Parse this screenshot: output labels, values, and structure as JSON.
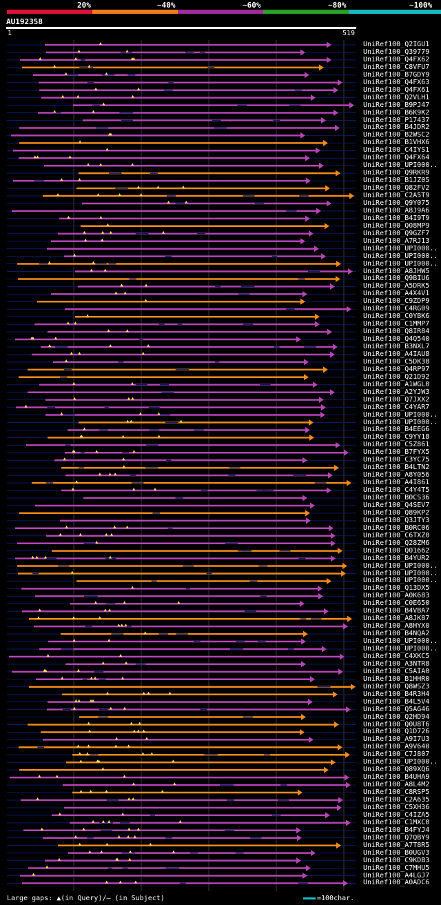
{
  "legend": {
    "labels": [
      "20%",
      "~40%",
      "~60%",
      "~80%",
      "~100%"
    ],
    "colors": [
      "#e0103a",
      "#f07c1c",
      "#a02c9c",
      "#28a028",
      "#18b8c0"
    ]
  },
  "query": {
    "title": "AU192358",
    "start_label": "1",
    "end_label": "519"
  },
  "colors": {
    "orange": "#f38a1e",
    "purple": "#b544b8",
    "navy": "#0a1a6a",
    "marker": "#ffe060",
    "grid": "#3a3a3a"
  },
  "rows": [
    {
      "name": "UniRef100_Q2IGU1",
      "c": "p"
    },
    {
      "name": "UniRef100_Q39779",
      "c": "p"
    },
    {
      "name": "UniRef100_Q4FX62",
      "c": "p"
    },
    {
      "name": "UniRef100_C8VFU7",
      "c": "o"
    },
    {
      "name": "UniRef100_B7GDY9",
      "c": "p"
    },
    {
      "name": "UniRef100_Q4FX63",
      "c": "p"
    },
    {
      "name": "UniRef100_Q4FX61",
      "c": "p"
    },
    {
      "name": "UniRef100_Q2VLH1",
      "c": "p"
    },
    {
      "name": "UniRef100_B9PJ47",
      "c": "p"
    },
    {
      "name": "UniRef100_B6K9K2",
      "c": "p"
    },
    {
      "name": "UniRef100_P17437",
      "c": "p"
    },
    {
      "name": "UniRef100_B4JDR2",
      "c": "p"
    },
    {
      "name": "UniRef100_B2WSC2",
      "c": "p"
    },
    {
      "name": "UniRef100_B1VHX6",
      "c": "o"
    },
    {
      "name": "UniRef100_C4IYS1",
      "c": "p"
    },
    {
      "name": "UniRef100_Q4FX64",
      "c": "p"
    },
    {
      "name": "UniRef100_UPI000..",
      "c": "p"
    },
    {
      "name": "UniRef100_Q9RKR9",
      "c": "o"
    },
    {
      "name": "UniRef100_B1JZ05",
      "c": "p"
    },
    {
      "name": "UniRef100_Q82FV2",
      "c": "o"
    },
    {
      "name": "UniRef100_C2A5T9",
      "c": "o"
    },
    {
      "name": "UniRef100_Q9Y075",
      "c": "p"
    },
    {
      "name": "UniRef100_A8J9A6",
      "c": "p"
    },
    {
      "name": "UniRef100_B4I9T9",
      "c": "p"
    },
    {
      "name": "UniRef100_Q08MP9",
      "c": "o"
    },
    {
      "name": "UniRef100_Q9GZF7",
      "c": "p"
    },
    {
      "name": "UniRef100_A7RJ13",
      "c": "p"
    },
    {
      "name": "UniRef100_UPI000..",
      "c": "p"
    },
    {
      "name": "UniRef100_UPI000..",
      "c": "p"
    },
    {
      "name": "UniRef100_UPI000..",
      "c": "o"
    },
    {
      "name": "UniRef100_A8JHW5",
      "c": "p"
    },
    {
      "name": "UniRef100_Q9BIU6",
      "c": "o"
    },
    {
      "name": "UniRef100_A5DRK5",
      "c": "p"
    },
    {
      "name": "UniRef100_A4X4V1",
      "c": "p"
    },
    {
      "name": "UniRef100_C9ZDP9",
      "c": "o"
    },
    {
      "name": "UniRef100_C4RG09",
      "c": "p"
    },
    {
      "name": "UniRef100_C0YBK6",
      "c": "o"
    },
    {
      "name": "UniRef100_C1MMP7",
      "c": "p"
    },
    {
      "name": "UniRef100_Q8IR84",
      "c": "p"
    },
    {
      "name": "UniRef100_Q4Q540",
      "c": "p"
    },
    {
      "name": "UniRef100_B3NXL7",
      "c": "p"
    },
    {
      "name": "UniRef100_A4IAU8",
      "c": "p"
    },
    {
      "name": "UniRef100_C5DK38",
      "c": "p"
    },
    {
      "name": "UniRef100_Q4RP97",
      "c": "o"
    },
    {
      "name": "UniRef100_Q21D92",
      "c": "o"
    },
    {
      "name": "UniRef100_A1WGL0",
      "c": "p"
    },
    {
      "name": "UniRef100_A2YJW3",
      "c": "p"
    },
    {
      "name": "UniRef100_Q7JXX2",
      "c": "p"
    },
    {
      "name": "UniRef100_C4YAR7",
      "c": "p"
    },
    {
      "name": "UniRef100_UPI000..",
      "c": "p"
    },
    {
      "name": "UniRef100_UPI000..",
      "c": "o"
    },
    {
      "name": "UniRef100_B4EEG6",
      "c": "p"
    },
    {
      "name": "UniRef100_C9YY18",
      "c": "o"
    },
    {
      "name": "UniRef100_C5Z861",
      "c": "p"
    },
    {
      "name": "UniRef100_B7FYX5",
      "c": "p"
    },
    {
      "name": "UniRef100_C3YC75",
      "c": "p"
    },
    {
      "name": "UniRef100_B4LTN2",
      "c": "o"
    },
    {
      "name": "UniRef100_A8Y056",
      "c": "p"
    },
    {
      "name": "UniRef100_A4I861",
      "c": "o"
    },
    {
      "name": "UniRef100_C4Y4T5",
      "c": "p"
    },
    {
      "name": "UniRef100_B0CS36",
      "c": "p"
    },
    {
      "name": "UniRef100_Q4SEV7",
      "c": "p"
    },
    {
      "name": "UniRef100_Q89KP2",
      "c": "o"
    },
    {
      "name": "UniRef100_Q3JTY3",
      "c": "p"
    },
    {
      "name": "UniRef100_B0RC06",
      "c": "p"
    },
    {
      "name": "UniRef100_C6TXZ0",
      "c": "p"
    },
    {
      "name": "UniRef100_Q28ZM6",
      "c": "p"
    },
    {
      "name": "UniRef100_Q01662",
      "c": "o"
    },
    {
      "name": "UniRef100_B4YUR2",
      "c": "p"
    },
    {
      "name": "UniRef100_UPI000..",
      "c": "o"
    },
    {
      "name": "UniRef100_UPI000..",
      "c": "o"
    },
    {
      "name": "UniRef100_UPI000..",
      "c": "o"
    },
    {
      "name": "UniRef100_Q13DX5",
      "c": "p"
    },
    {
      "name": "UniRef100_A0K683",
      "c": "p"
    },
    {
      "name": "UniRef100_C0E650",
      "c": "p"
    },
    {
      "name": "UniRef100_B4VBA7",
      "c": "p"
    },
    {
      "name": "UniRef100_A8JK87",
      "c": "o"
    },
    {
      "name": "UniRef100_A8HYX0",
      "c": "p"
    },
    {
      "name": "UniRef100_B4NQA2",
      "c": "o"
    },
    {
      "name": "UniRef100_UPI000..",
      "c": "p"
    },
    {
      "name": "UniRef100_UPI000..",
      "c": "p"
    },
    {
      "name": "UniRef100_C4XKC5",
      "c": "p"
    },
    {
      "name": "UniRef100_A3NTR8",
      "c": "p"
    },
    {
      "name": "UniRef100_C5AIA0",
      "c": "p"
    },
    {
      "name": "UniRef100_B1HHR0",
      "c": "p"
    },
    {
      "name": "UniRef100_Q8WSZ3",
      "c": "o"
    },
    {
      "name": "UniRef100_B4R3H4",
      "c": "o"
    },
    {
      "name": "UniRef100_B4L5V4",
      "c": "p"
    },
    {
      "name": "UniRef100_Q5AG46",
      "c": "p"
    },
    {
      "name": "UniRef100_Q2HD94",
      "c": "o"
    },
    {
      "name": "UniRef100_Q0U8T6",
      "c": "o"
    },
    {
      "name": "UniRef100_Q1D726",
      "c": "o"
    },
    {
      "name": "UniRef100_A9I7U3",
      "c": "p"
    },
    {
      "name": "UniRef100_A9V640",
      "c": "o"
    },
    {
      "name": "UniRef100_C7J807",
      "c": "o"
    },
    {
      "name": "UniRef100_UPI000..",
      "c": "o"
    },
    {
      "name": "UniRef100_Q89XQ6",
      "c": "o"
    },
    {
      "name": "UniRef100_B4UHA9",
      "c": "p"
    },
    {
      "name": "UniRef100_A8L4M2",
      "c": "p"
    },
    {
      "name": "UniRef100_C8RSP5",
      "c": "o"
    },
    {
      "name": "UniRef100_C2A635",
      "c": "p"
    },
    {
      "name": "UniRef100_C5XH36",
      "c": "p"
    },
    {
      "name": "UniRef100_C4IZA5",
      "c": "p"
    },
    {
      "name": "UniRef100_C1MXC0",
      "c": "p"
    },
    {
      "name": "UniRef100_B4FYJ4",
      "c": "p"
    },
    {
      "name": "UniRef100_Q7QBY9",
      "c": "p"
    },
    {
      "name": "UniRef100_A7T8R5",
      "c": "o"
    },
    {
      "name": "UniRef100_B0UGV3",
      "c": "p"
    },
    {
      "name": "UniRef100_C9KDB3",
      "c": "p"
    },
    {
      "name": "UniRef100_C7MHU5",
      "c": "p"
    },
    {
      "name": "UniRef100_A4LGJ7",
      "c": "p"
    },
    {
      "name": "UniRef100_A0ADC6",
      "c": "p"
    }
  ],
  "footer": {
    "gaps_text": "Large gaps: ▲(in Query)/– (in Subject)",
    "scale_text": "=100char."
  }
}
